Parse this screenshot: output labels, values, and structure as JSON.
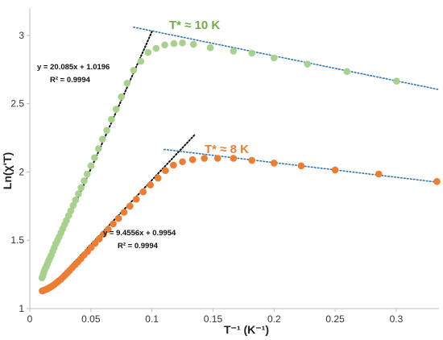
{
  "chart_data": {
    "type": "scatter",
    "xlabel": "T⁻¹ (K⁻¹)",
    "ylabel": "Ln(χ'T)",
    "xlim": [
      0,
      0.335
    ],
    "ylim": [
      1,
      3.2
    ],
    "x_ticks": [
      "0",
      "0.05",
      "0.1",
      "0.15",
      "0.2",
      "0.25",
      "0.3"
    ],
    "y_ticks": [
      "1",
      "1.5",
      "2",
      "2.5",
      "3"
    ],
    "grid": false,
    "series": [
      {
        "color": "#a9d18e",
        "x": [
          0.01,
          0.0105,
          0.011,
          0.0115,
          0.012,
          0.0128,
          0.0136,
          0.0145,
          0.0155,
          0.0165,
          0.0175,
          0.0188,
          0.02,
          0.0213,
          0.0227,
          0.024,
          0.0255,
          0.027,
          0.0285,
          0.03,
          0.0318,
          0.0335,
          0.0355,
          0.0375,
          0.0398,
          0.042,
          0.0445,
          0.047,
          0.05,
          0.053,
          0.0562,
          0.0595,
          0.063,
          0.0668,
          0.0707,
          0.075,
          0.0797,
          0.085,
          0.0909,
          0.0968,
          0.1034,
          0.1105,
          0.118,
          0.125,
          0.134,
          0.1478,
          0.1667,
          0.1818,
          0.2,
          0.2273,
          0.2597,
          0.3003
        ],
        "y": [
          1.225,
          1.235,
          1.25,
          1.265,
          1.28,
          1.295,
          1.31,
          1.33,
          1.35,
          1.37,
          1.39,
          1.42,
          1.445,
          1.475,
          1.5,
          1.525,
          1.555,
          1.585,
          1.615,
          1.645,
          1.68,
          1.715,
          1.755,
          1.795,
          1.84,
          1.885,
          1.935,
          1.985,
          2.045,
          2.105,
          2.17,
          2.24,
          2.305,
          2.385,
          2.46,
          2.55,
          2.65,
          2.745,
          2.81,
          2.875,
          2.905,
          2.93,
          2.94,
          2.945,
          2.935,
          2.91,
          2.885,
          2.87,
          2.835,
          2.79,
          2.735,
          2.665
        ],
        "annotation": "T* ≈ 10 K",
        "fit_equation": "y = 20.085x + 1.0196",
        "fit_r2": "R² = 0.9994",
        "linear_fit": {
          "slope": 20.085,
          "intercept": 1.0196,
          "x_from": 0.017,
          "x_to": 0.1
        },
        "trend_line": {
          "x_from": 0.085,
          "y_from": 3.06,
          "x_to": 0.334,
          "y_to": 2.605
        }
      },
      {
        "color": "#ed7d31",
        "x": [
          0.0102,
          0.011,
          0.0118,
          0.0127,
          0.0136,
          0.0145,
          0.0155,
          0.0165,
          0.0177,
          0.0188,
          0.02,
          0.0213,
          0.0227,
          0.024,
          0.0255,
          0.0272,
          0.0289,
          0.0307,
          0.0327,
          0.0348,
          0.037,
          0.0394,
          0.0418,
          0.0445,
          0.0473,
          0.0503,
          0.0535,
          0.0568,
          0.0604,
          0.0642,
          0.0683,
          0.0726,
          0.0772,
          0.082,
          0.0872,
          0.0928,
          0.0987,
          0.105,
          0.1111,
          0.1176,
          0.125,
          0.1333,
          0.1429,
          0.1538,
          0.1667,
          0.1818,
          0.2,
          0.2222,
          0.25,
          0.2857,
          0.3333
        ],
        "y": [
          1.13,
          1.132,
          1.135,
          1.138,
          1.142,
          1.145,
          1.15,
          1.155,
          1.162,
          1.168,
          1.175,
          1.185,
          1.195,
          1.205,
          1.215,
          1.23,
          1.245,
          1.262,
          1.28,
          1.3,
          1.32,
          1.342,
          1.365,
          1.392,
          1.418,
          1.448,
          1.478,
          1.51,
          1.545,
          1.58,
          1.62,
          1.66,
          1.705,
          1.75,
          1.8,
          1.855,
          1.905,
          1.955,
          2.01,
          2.05,
          2.075,
          2.09,
          2.1,
          2.1,
          2.1,
          2.085,
          2.065,
          2.045,
          2.015,
          1.985,
          1.93
        ],
        "annotation": "T* ≈ 8 K",
        "fit_equation": "y = 9.4556x + 0.9954",
        "fit_r2": "R² = 0.9994",
        "linear_fit": {
          "slope": 9.4556,
          "intercept": 0.9954,
          "x_from": 0.018,
          "x_to": 0.135
        },
        "trend_line": {
          "x_from": 0.11,
          "y_from": 2.165,
          "x_to": 0.334,
          "y_to": 1.925
        }
      }
    ]
  }
}
